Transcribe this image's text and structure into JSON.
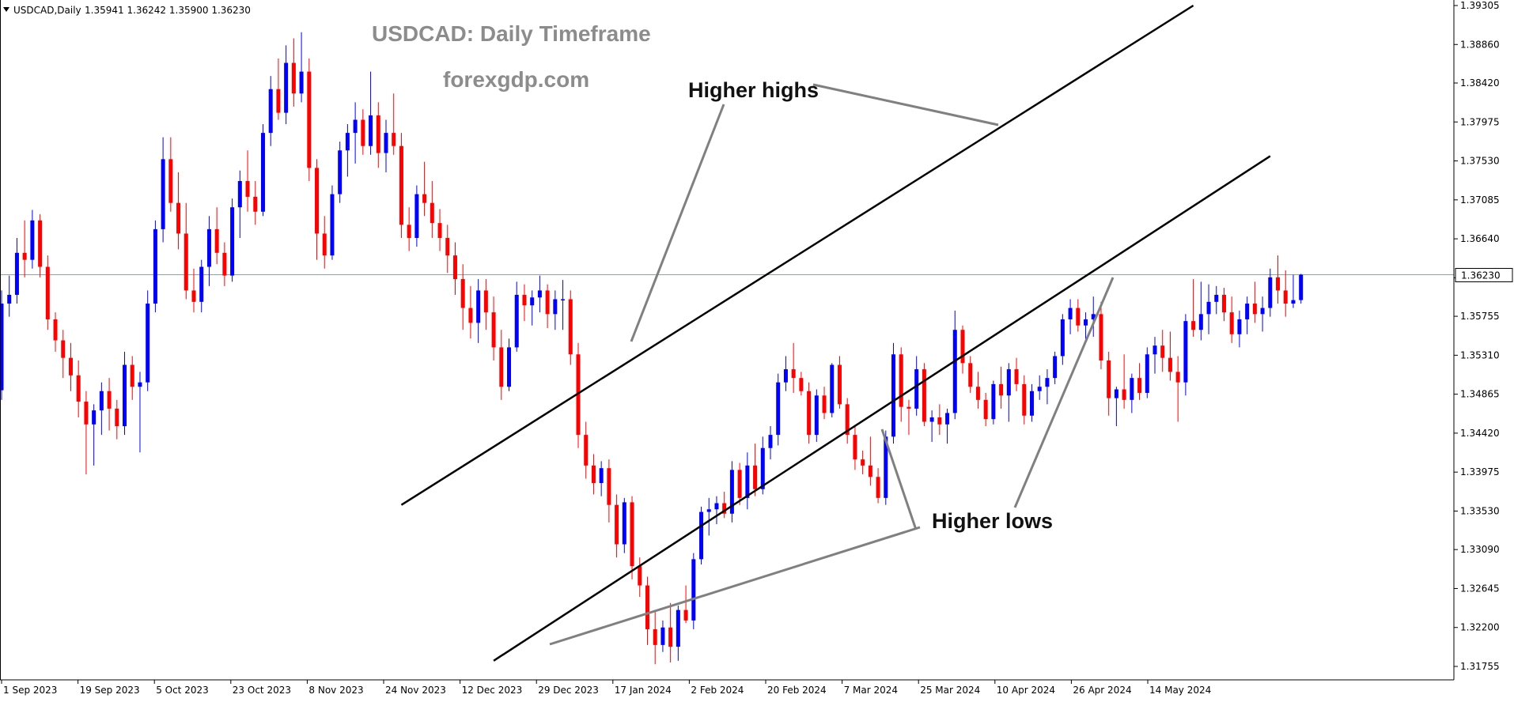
{
  "header": {
    "symbol": "USDCAD,Daily",
    "ohlc": "1.35941 1.36242 1.35900 1.36230",
    "dropdown_icon": "triangle-down-icon"
  },
  "watermark": {
    "title": "USDCAD: Daily Timeframe",
    "site": "forexgdp.com"
  },
  "annotations": {
    "higher_highs": "Higher highs",
    "higher_lows": "Higher lows"
  },
  "current_price_label": "1.36230",
  "colors": {
    "bull": "#0000ff",
    "bear": "#ff0000",
    "trendline": "#000000",
    "pointer": "#808080",
    "price_line": "#8aa0b8",
    "watermark": "#8c8c8c"
  },
  "chart_data": {
    "type": "candlestick",
    "symbol": "USDCAD",
    "timeframe": "Daily",
    "x_tick_labels": [
      "1 Sep 2023",
      "19 Sep 2023",
      "5 Oct 2023",
      "23 Oct 2023",
      "8 Nov 2023",
      "24 Nov 2023",
      "12 Dec 2023",
      "29 Dec 2023",
      "17 Jan 2024",
      "2 Feb 2024",
      "20 Feb 2024",
      "7 Mar 2024",
      "25 Mar 2024",
      "10 Apr 2024",
      "26 Apr 2024",
      "14 May 2024"
    ],
    "y_tick_labels": [
      "1.39305",
      "1.38860",
      "1.38420",
      "1.37975",
      "1.37530",
      "1.37085",
      "1.36640",
      "1.36195",
      "1.35755",
      "1.35310",
      "1.34865",
      "1.34420",
      "1.33975",
      "1.33530",
      "1.33090",
      "1.32645",
      "1.32200",
      "1.31755"
    ],
    "ylim": [
      1.3157,
      1.3933
    ],
    "current_price": 1.3623,
    "channel": {
      "upper": {
        "from": {
          "bar": 52,
          "price": 1.336
        },
        "to": {
          "bar": 155,
          "price": 1.39305
        }
      },
      "lower": {
        "from": {
          "bar": 64,
          "price": 1.3182
        },
        "to": {
          "bar": 165,
          "price": 1.37585
        }
      }
    },
    "candles": [
      {
        "o": 1.3491,
        "h": 1.3605,
        "l": 1.348,
        "c": 1.359
      },
      {
        "o": 1.359,
        "h": 1.3622,
        "l": 1.3575,
        "c": 1.36
      },
      {
        "o": 1.36,
        "h": 1.3665,
        "l": 1.359,
        "c": 1.3648
      },
      {
        "o": 1.3648,
        "h": 1.3685,
        "l": 1.362,
        "c": 1.364
      },
      {
        "o": 1.364,
        "h": 1.3697,
        "l": 1.363,
        "c": 1.3685
      },
      {
        "o": 1.3685,
        "h": 1.3692,
        "l": 1.362,
        "c": 1.3632
      },
      {
        "o": 1.3632,
        "h": 1.3645,
        "l": 1.356,
        "c": 1.3572
      },
      {
        "o": 1.3572,
        "h": 1.358,
        "l": 1.3535,
        "c": 1.3548
      },
      {
        "o": 1.3548,
        "h": 1.356,
        "l": 1.3505,
        "c": 1.3528
      },
      {
        "o": 1.3528,
        "h": 1.3545,
        "l": 1.349,
        "c": 1.3508
      },
      {
        "o": 1.3508,
        "h": 1.3525,
        "l": 1.346,
        "c": 1.3478
      },
      {
        "o": 1.3478,
        "h": 1.349,
        "l": 1.3395,
        "c": 1.3452
      },
      {
        "o": 1.3452,
        "h": 1.3475,
        "l": 1.3405,
        "c": 1.3468
      },
      {
        "o": 1.3468,
        "h": 1.35,
        "l": 1.344,
        "c": 1.349
      },
      {
        "o": 1.349,
        "h": 1.3505,
        "l": 1.3445,
        "c": 1.347
      },
      {
        "o": 1.347,
        "h": 1.348,
        "l": 1.3435,
        "c": 1.345
      },
      {
        "o": 1.345,
        "h": 1.3535,
        "l": 1.344,
        "c": 1.352
      },
      {
        "o": 1.352,
        "h": 1.353,
        "l": 1.348,
        "c": 1.3495
      },
      {
        "o": 1.3495,
        "h": 1.3512,
        "l": 1.342,
        "c": 1.35
      },
      {
        "o": 1.35,
        "h": 1.3605,
        "l": 1.349,
        "c": 1.359
      },
      {
        "o": 1.359,
        "h": 1.3685,
        "l": 1.358,
        "c": 1.3675
      },
      {
        "o": 1.3675,
        "h": 1.378,
        "l": 1.366,
        "c": 1.3755
      },
      {
        "o": 1.3755,
        "h": 1.378,
        "l": 1.3695,
        "c": 1.3705
      },
      {
        "o": 1.3705,
        "h": 1.374,
        "l": 1.3652,
        "c": 1.367
      },
      {
        "o": 1.367,
        "h": 1.3705,
        "l": 1.3595,
        "c": 1.3605
      },
      {
        "o": 1.3605,
        "h": 1.363,
        "l": 1.358,
        "c": 1.3592
      },
      {
        "o": 1.3592,
        "h": 1.364,
        "l": 1.358,
        "c": 1.3632
      },
      {
        "o": 1.3632,
        "h": 1.369,
        "l": 1.361,
        "c": 1.3675
      },
      {
        "o": 1.3675,
        "h": 1.37,
        "l": 1.3635,
        "c": 1.3648
      },
      {
        "o": 1.3648,
        "h": 1.366,
        "l": 1.361,
        "c": 1.3622
      },
      {
        "o": 1.3622,
        "h": 1.371,
        "l": 1.3615,
        "c": 1.37
      },
      {
        "o": 1.37,
        "h": 1.3742,
        "l": 1.3665,
        "c": 1.373
      },
      {
        "o": 1.373,
        "h": 1.3765,
        "l": 1.3695,
        "c": 1.3712
      },
      {
        "o": 1.3712,
        "h": 1.373,
        "l": 1.368,
        "c": 1.3695
      },
      {
        "o": 1.3695,
        "h": 1.3795,
        "l": 1.369,
        "c": 1.3785
      },
      {
        "o": 1.3785,
        "h": 1.385,
        "l": 1.377,
        "c": 1.3835
      },
      {
        "o": 1.3835,
        "h": 1.387,
        "l": 1.38,
        "c": 1.3808
      },
      {
        "o": 1.3808,
        "h": 1.3885,
        "l": 1.3795,
        "c": 1.3865
      },
      {
        "o": 1.3865,
        "h": 1.3893,
        "l": 1.3815,
        "c": 1.383
      },
      {
        "o": 1.383,
        "h": 1.39,
        "l": 1.382,
        "c": 1.3855
      },
      {
        "o": 1.3855,
        "h": 1.387,
        "l": 1.373,
        "c": 1.3745
      },
      {
        "o": 1.3745,
        "h": 1.3755,
        "l": 1.364,
        "c": 1.367
      },
      {
        "o": 1.367,
        "h": 1.369,
        "l": 1.363,
        "c": 1.3645
      },
      {
        "o": 1.3645,
        "h": 1.3725,
        "l": 1.364,
        "c": 1.3715
      },
      {
        "o": 1.3715,
        "h": 1.3775,
        "l": 1.3705,
        "c": 1.3765
      },
      {
        "o": 1.3765,
        "h": 1.3795,
        "l": 1.3735,
        "c": 1.3785
      },
      {
        "o": 1.3785,
        "h": 1.382,
        "l": 1.375,
        "c": 1.38
      },
      {
        "o": 1.38,
        "h": 1.3812,
        "l": 1.376,
        "c": 1.377
      },
      {
        "o": 1.377,
        "h": 1.3855,
        "l": 1.376,
        "c": 1.3805
      },
      {
        "o": 1.3805,
        "h": 1.382,
        "l": 1.3745,
        "c": 1.3762
      },
      {
        "o": 1.3762,
        "h": 1.38,
        "l": 1.374,
        "c": 1.3785
      },
      {
        "o": 1.3785,
        "h": 1.383,
        "l": 1.376,
        "c": 1.377
      },
      {
        "o": 1.377,
        "h": 1.3785,
        "l": 1.3665,
        "c": 1.368
      },
      {
        "o": 1.368,
        "h": 1.37,
        "l": 1.365,
        "c": 1.3665
      },
      {
        "o": 1.3665,
        "h": 1.3725,
        "l": 1.3655,
        "c": 1.3715
      },
      {
        "o": 1.3715,
        "h": 1.3752,
        "l": 1.369,
        "c": 1.3705
      },
      {
        "o": 1.3705,
        "h": 1.373,
        "l": 1.3665,
        "c": 1.3682
      },
      {
        "o": 1.3682,
        "h": 1.3698,
        "l": 1.365,
        "c": 1.3665
      },
      {
        "o": 1.3665,
        "h": 1.368,
        "l": 1.3625,
        "c": 1.3645
      },
      {
        "o": 1.3645,
        "h": 1.366,
        "l": 1.36,
        "c": 1.3618
      },
      {
        "o": 1.3618,
        "h": 1.3635,
        "l": 1.356,
        "c": 1.3585
      },
      {
        "o": 1.3585,
        "h": 1.361,
        "l": 1.355,
        "c": 1.3568
      },
      {
        "o": 1.3568,
        "h": 1.3618,
        "l": 1.3545,
        "c": 1.3605
      },
      {
        "o": 1.3605,
        "h": 1.3618,
        "l": 1.356,
        "c": 1.358
      },
      {
        "o": 1.358,
        "h": 1.3598,
        "l": 1.3525,
        "c": 1.354
      },
      {
        "o": 1.354,
        "h": 1.356,
        "l": 1.348,
        "c": 1.3495
      },
      {
        "o": 1.3495,
        "h": 1.355,
        "l": 1.349,
        "c": 1.354
      },
      {
        "o": 1.354,
        "h": 1.3615,
        "l": 1.3535,
        "c": 1.36
      },
      {
        "o": 1.36,
        "h": 1.3612,
        "l": 1.357,
        "c": 1.3588
      },
      {
        "o": 1.3588,
        "h": 1.3605,
        "l": 1.3565,
        "c": 1.3597
      },
      {
        "o": 1.3597,
        "h": 1.3622,
        "l": 1.358,
        "c": 1.3605
      },
      {
        "o": 1.3605,
        "h": 1.3612,
        "l": 1.3562,
        "c": 1.3578
      },
      {
        "o": 1.3578,
        "h": 1.3605,
        "l": 1.356,
        "c": 1.3595
      },
      {
        "o": 1.3595,
        "h": 1.3617,
        "l": 1.356,
        "c": 1.3595
      },
      {
        "o": 1.3595,
        "h": 1.3605,
        "l": 1.352,
        "c": 1.3532
      },
      {
        "o": 1.3532,
        "h": 1.3545,
        "l": 1.3425,
        "c": 1.344
      },
      {
        "o": 1.344,
        "h": 1.3455,
        "l": 1.339,
        "c": 1.3405
      },
      {
        "o": 1.3405,
        "h": 1.3418,
        "l": 1.3372,
        "c": 1.3385
      },
      {
        "o": 1.3385,
        "h": 1.341,
        "l": 1.337,
        "c": 1.3402
      },
      {
        "o": 1.3402,
        "h": 1.3412,
        "l": 1.334,
        "c": 1.336
      },
      {
        "o": 1.336,
        "h": 1.3372,
        "l": 1.33,
        "c": 1.3315
      },
      {
        "o": 1.3315,
        "h": 1.3368,
        "l": 1.3305,
        "c": 1.3363
      },
      {
        "o": 1.3363,
        "h": 1.337,
        "l": 1.3275,
        "c": 1.329
      },
      {
        "o": 1.329,
        "h": 1.33,
        "l": 1.3255,
        "c": 1.3268
      },
      {
        "o": 1.3268,
        "h": 1.3278,
        "l": 1.32,
        "c": 1.3218
      },
      {
        "o": 1.3218,
        "h": 1.3238,
        "l": 1.3178,
        "c": 1.32
      },
      {
        "o": 1.32,
        "h": 1.3228,
        "l": 1.3192,
        "c": 1.322
      },
      {
        "o": 1.322,
        "h": 1.3248,
        "l": 1.318,
        "c": 1.3198
      },
      {
        "o": 1.3198,
        "h": 1.3245,
        "l": 1.3182,
        "c": 1.324
      },
      {
        "o": 1.324,
        "h": 1.3268,
        "l": 1.3225,
        "c": 1.3228
      },
      {
        "o": 1.3228,
        "h": 1.3305,
        "l": 1.3218,
        "c": 1.3298
      },
      {
        "o": 1.3298,
        "h": 1.3358,
        "l": 1.3292,
        "c": 1.3352
      },
      {
        "o": 1.3352,
        "h": 1.3368,
        "l": 1.3325,
        "c": 1.3355
      },
      {
        "o": 1.3355,
        "h": 1.337,
        "l": 1.3338,
        "c": 1.3362
      },
      {
        "o": 1.3362,
        "h": 1.3375,
        "l": 1.3345,
        "c": 1.335
      },
      {
        "o": 1.335,
        "h": 1.341,
        "l": 1.334,
        "c": 1.34
      },
      {
        "o": 1.34,
        "h": 1.3408,
        "l": 1.336,
        "c": 1.3368
      },
      {
        "o": 1.3368,
        "h": 1.342,
        "l": 1.3355,
        "c": 1.3405
      },
      {
        "o": 1.3405,
        "h": 1.343,
        "l": 1.337,
        "c": 1.3378
      },
      {
        "o": 1.3378,
        "h": 1.3438,
        "l": 1.3372,
        "c": 1.3425
      },
      {
        "o": 1.3425,
        "h": 1.345,
        "l": 1.3412,
        "c": 1.344
      },
      {
        "o": 1.344,
        "h": 1.351,
        "l": 1.3428,
        "c": 1.35
      },
      {
        "o": 1.35,
        "h": 1.353,
        "l": 1.349,
        "c": 1.3515
      },
      {
        "o": 1.3515,
        "h": 1.3545,
        "l": 1.3488,
        "c": 1.3505
      },
      {
        "o": 1.3505,
        "h": 1.3512,
        "l": 1.3485,
        "c": 1.349
      },
      {
        "o": 1.349,
        "h": 1.35,
        "l": 1.343,
        "c": 1.344
      },
      {
        "o": 1.344,
        "h": 1.3492,
        "l": 1.3432,
        "c": 1.3485
      },
      {
        "o": 1.3485,
        "h": 1.3495,
        "l": 1.3458,
        "c": 1.3465
      },
      {
        "o": 1.3465,
        "h": 1.3522,
        "l": 1.346,
        "c": 1.352
      },
      {
        "o": 1.352,
        "h": 1.353,
        "l": 1.347,
        "c": 1.3475
      },
      {
        "o": 1.3475,
        "h": 1.3482,
        "l": 1.343,
        "c": 1.344
      },
      {
        "o": 1.344,
        "h": 1.345,
        "l": 1.34,
        "c": 1.3412
      },
      {
        "o": 1.3412,
        "h": 1.3422,
        "l": 1.3395,
        "c": 1.3405
      },
      {
        "o": 1.3405,
        "h": 1.3438,
        "l": 1.3382,
        "c": 1.3392
      },
      {
        "o": 1.3392,
        "h": 1.3402,
        "l": 1.3362,
        "c": 1.3368
      },
      {
        "o": 1.3368,
        "h": 1.3445,
        "l": 1.336,
        "c": 1.3438
      },
      {
        "o": 1.3438,
        "h": 1.3545,
        "l": 1.343,
        "c": 1.3532
      },
      {
        "o": 1.3532,
        "h": 1.354,
        "l": 1.3455,
        "c": 1.3472
      },
      {
        "o": 1.3472,
        "h": 1.348,
        "l": 1.344,
        "c": 1.347
      },
      {
        "o": 1.347,
        "h": 1.353,
        "l": 1.3462,
        "c": 1.3515
      },
      {
        "o": 1.3515,
        "h": 1.3522,
        "l": 1.345,
        "c": 1.3455
      },
      {
        "o": 1.3455,
        "h": 1.3468,
        "l": 1.3432,
        "c": 1.346
      },
      {
        "o": 1.346,
        "h": 1.3475,
        "l": 1.344,
        "c": 1.3452
      },
      {
        "o": 1.3452,
        "h": 1.347,
        "l": 1.343,
        "c": 1.3465
      },
      {
        "o": 1.3465,
        "h": 1.3582,
        "l": 1.3458,
        "c": 1.356
      },
      {
        "o": 1.356,
        "h": 1.3565,
        "l": 1.351,
        "c": 1.3522
      },
      {
        "o": 1.3522,
        "h": 1.353,
        "l": 1.3488,
        "c": 1.3495
      },
      {
        "o": 1.3495,
        "h": 1.3512,
        "l": 1.347,
        "c": 1.348
      },
      {
        "o": 1.348,
        "h": 1.3488,
        "l": 1.345,
        "c": 1.3458
      },
      {
        "o": 1.3458,
        "h": 1.3502,
        "l": 1.3452,
        "c": 1.3498
      },
      {
        "o": 1.3498,
        "h": 1.3518,
        "l": 1.347,
        "c": 1.3485
      },
      {
        "o": 1.3485,
        "h": 1.3522,
        "l": 1.3455,
        "c": 1.3515
      },
      {
        "o": 1.3515,
        "h": 1.3528,
        "l": 1.349,
        "c": 1.3498
      },
      {
        "o": 1.3498,
        "h": 1.3508,
        "l": 1.3452,
        "c": 1.3462
      },
      {
        "o": 1.3462,
        "h": 1.3498,
        "l": 1.3455,
        "c": 1.349
      },
      {
        "o": 1.349,
        "h": 1.3508,
        "l": 1.348,
        "c": 1.3495
      },
      {
        "o": 1.3495,
        "h": 1.3515,
        "l": 1.3475,
        "c": 1.3505
      },
      {
        "o": 1.3505,
        "h": 1.3535,
        "l": 1.3498,
        "c": 1.353
      },
      {
        "o": 1.353,
        "h": 1.3578,
        "l": 1.352,
        "c": 1.3572
      },
      {
        "o": 1.3572,
        "h": 1.3595,
        "l": 1.3555,
        "c": 1.3585
      },
      {
        "o": 1.3585,
        "h": 1.3595,
        "l": 1.3558,
        "c": 1.3565
      },
      {
        "o": 1.3565,
        "h": 1.358,
        "l": 1.3548,
        "c": 1.3572
      },
      {
        "o": 1.3572,
        "h": 1.3598,
        "l": 1.3552,
        "c": 1.3578
      },
      {
        "o": 1.3578,
        "h": 1.3592,
        "l": 1.3515,
        "c": 1.3525
      },
      {
        "o": 1.3525,
        "h": 1.3535,
        "l": 1.3462,
        "c": 1.3482
      },
      {
        "o": 1.3482,
        "h": 1.3495,
        "l": 1.345,
        "c": 1.3492
      },
      {
        "o": 1.3492,
        "h": 1.3532,
        "l": 1.347,
        "c": 1.348
      },
      {
        "o": 1.348,
        "h": 1.351,
        "l": 1.3465,
        "c": 1.3505
      },
      {
        "o": 1.3505,
        "h": 1.3522,
        "l": 1.348,
        "c": 1.3488
      },
      {
        "o": 1.3488,
        "h": 1.354,
        "l": 1.3482,
        "c": 1.3532
      },
      {
        "o": 1.3532,
        "h": 1.3552,
        "l": 1.351,
        "c": 1.3542
      },
      {
        "o": 1.3542,
        "h": 1.356,
        "l": 1.3512,
        "c": 1.3528
      },
      {
        "o": 1.3528,
        "h": 1.3558,
        "l": 1.3502,
        "c": 1.3512
      },
      {
        "o": 1.3512,
        "h": 1.353,
        "l": 1.3455,
        "c": 1.35
      },
      {
        "o": 1.35,
        "h": 1.3578,
        "l": 1.3485,
        "c": 1.357
      },
      {
        "o": 1.357,
        "h": 1.3618,
        "l": 1.3552,
        "c": 1.356
      },
      {
        "o": 1.356,
        "h": 1.3615,
        "l": 1.3548,
        "c": 1.3578
      },
      {
        "o": 1.3578,
        "h": 1.3612,
        "l": 1.3555,
        "c": 1.3592
      },
      {
        "o": 1.3592,
        "h": 1.361,
        "l": 1.3578,
        "c": 1.36
      },
      {
        "o": 1.36,
        "h": 1.3608,
        "l": 1.357,
        "c": 1.358
      },
      {
        "o": 1.358,
        "h": 1.3598,
        "l": 1.3545,
        "c": 1.3555
      },
      {
        "o": 1.3555,
        "h": 1.3582,
        "l": 1.354,
        "c": 1.3572
      },
      {
        "o": 1.3572,
        "h": 1.3598,
        "l": 1.3555,
        "c": 1.359
      },
      {
        "o": 1.359,
        "h": 1.3615,
        "l": 1.3568,
        "c": 1.3578
      },
      {
        "o": 1.3578,
        "h": 1.3598,
        "l": 1.3558,
        "c": 1.3585
      },
      {
        "o": 1.3585,
        "h": 1.363,
        "l": 1.3575,
        "c": 1.362
      },
      {
        "o": 1.362,
        "h": 1.3645,
        "l": 1.359,
        "c": 1.3605
      },
      {
        "o": 1.3605,
        "h": 1.3628,
        "l": 1.3575,
        "c": 1.359
      },
      {
        "o": 1.359,
        "h": 1.3623,
        "l": 1.3585,
        "c": 1.3594
      },
      {
        "o": 1.3594,
        "h": 1.3624,
        "l": 1.359,
        "c": 1.3623
      }
    ]
  }
}
